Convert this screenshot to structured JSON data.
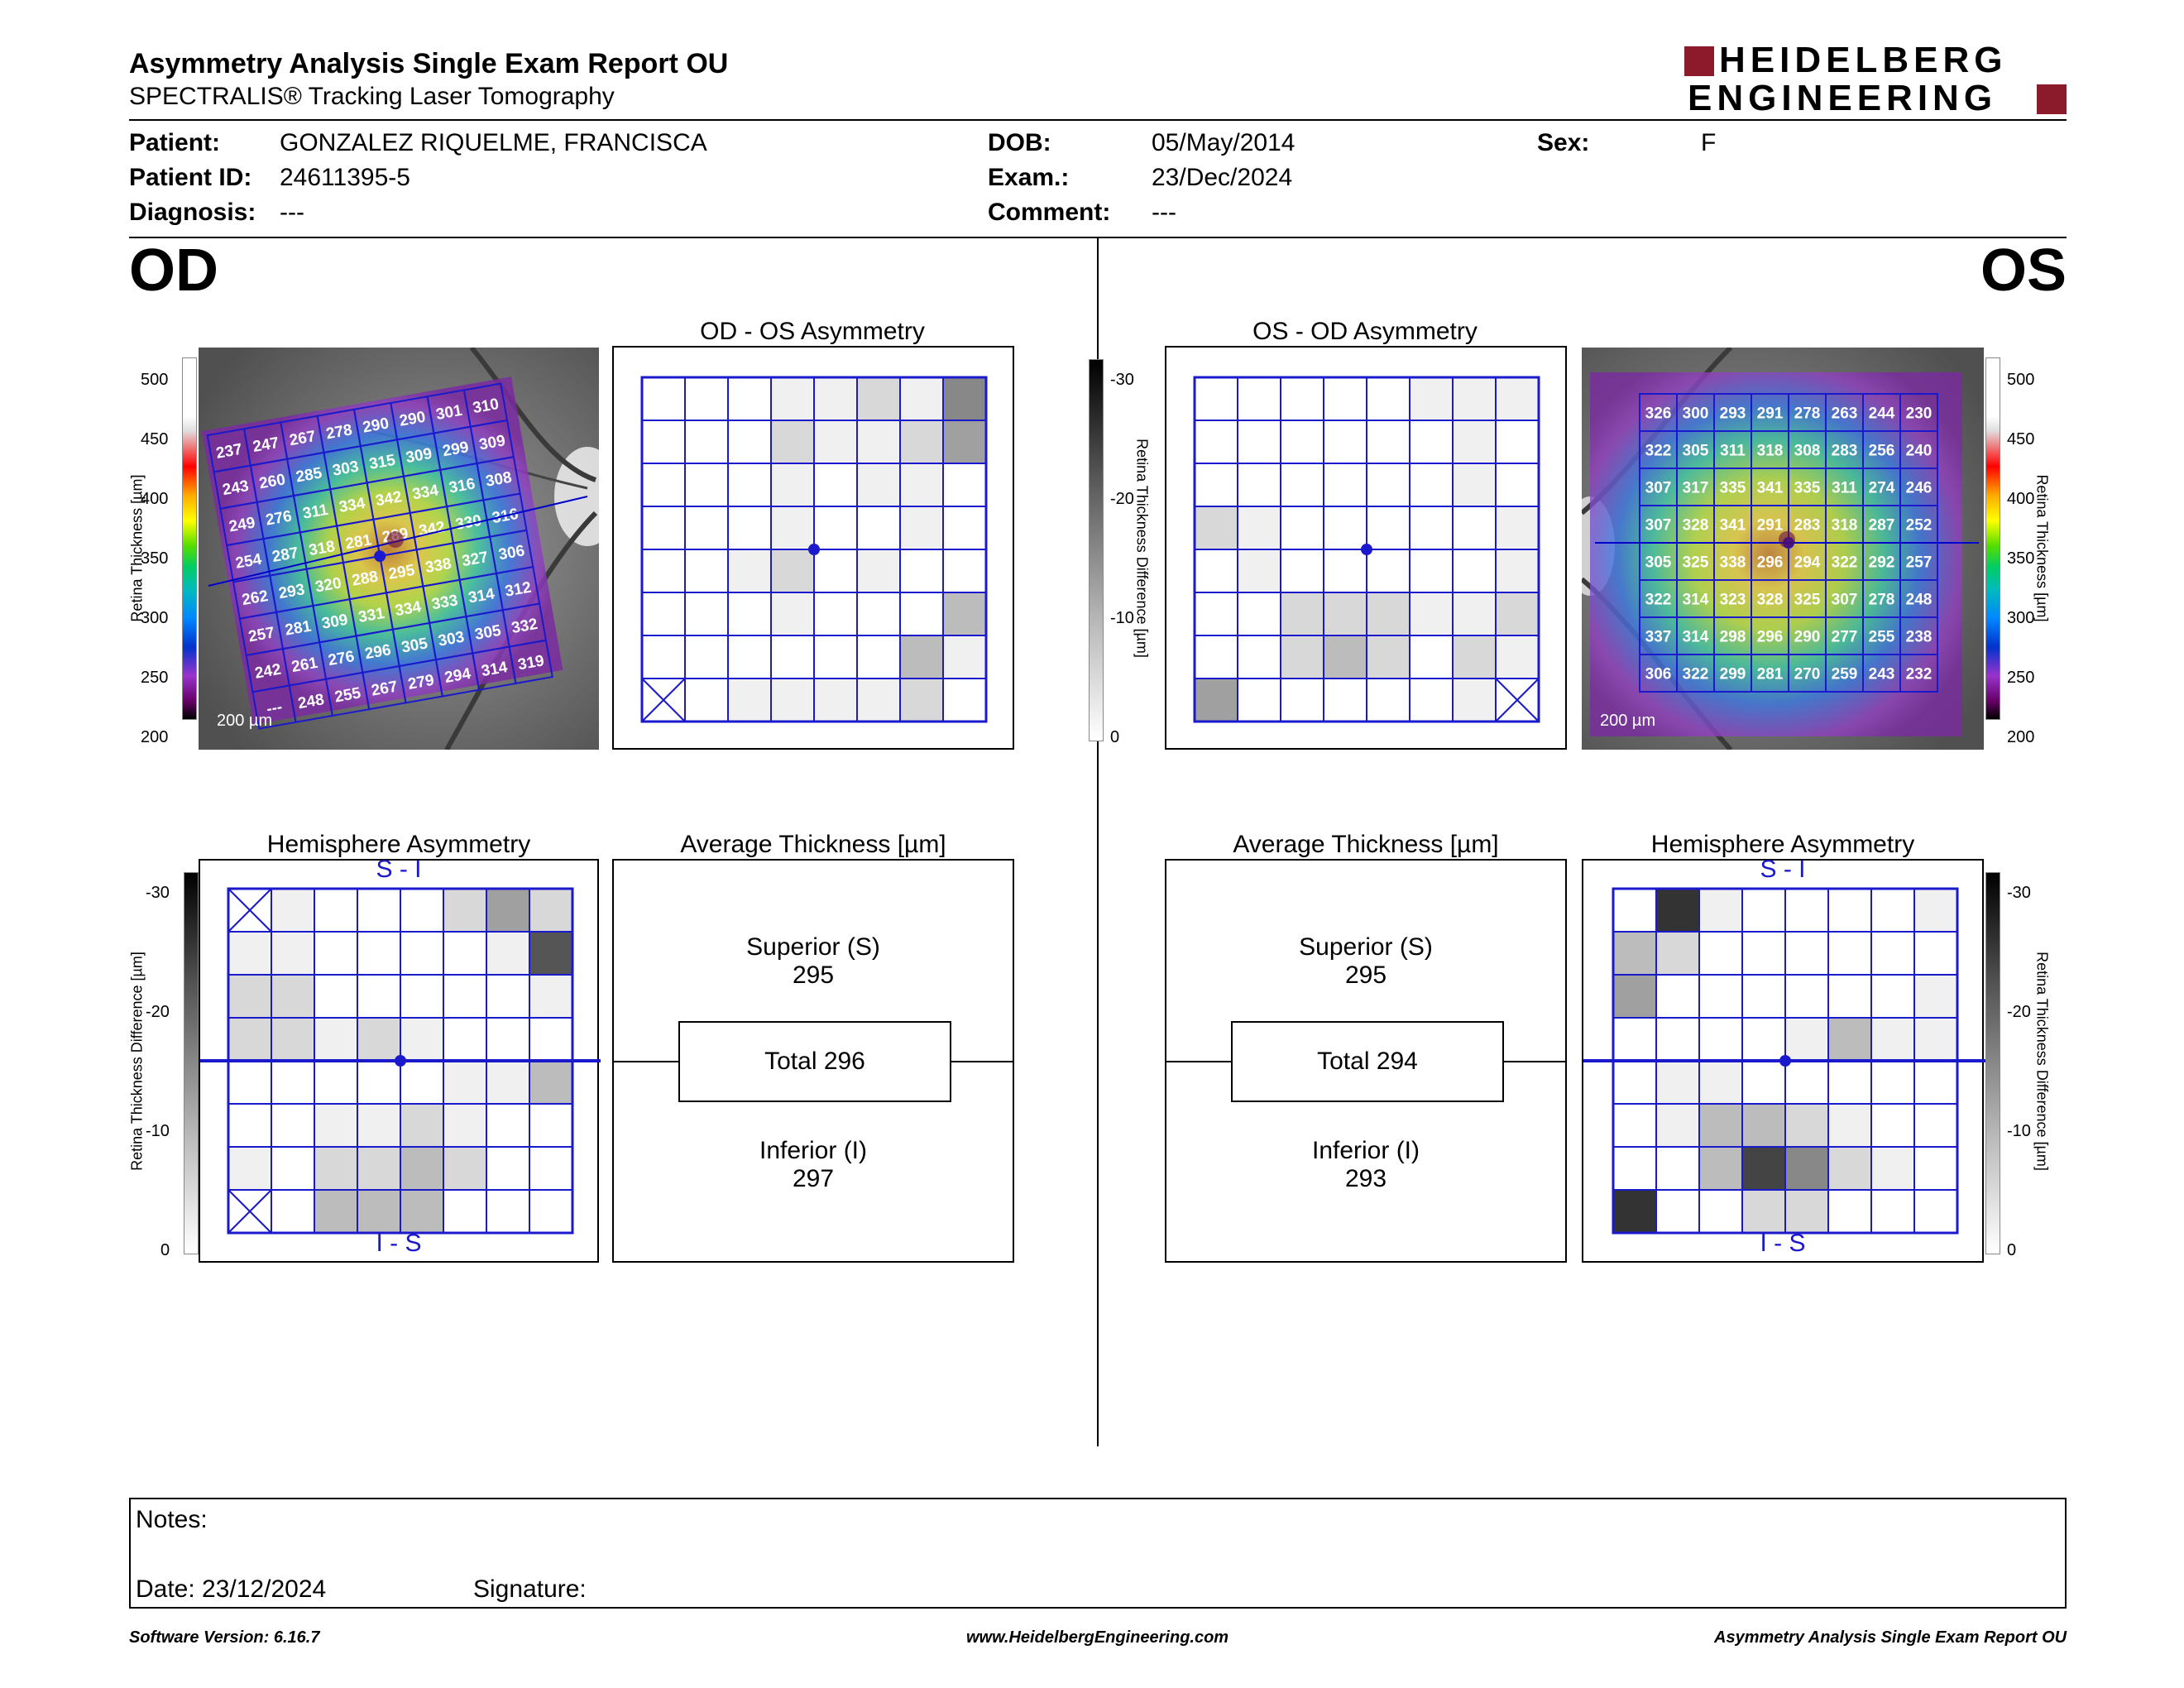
{
  "header": {
    "title": "Asymmetry Analysis Single Exam Report OU",
    "subtitle": "SPECTRALIS® Tracking Laser Tomography",
    "logo_line1": "HEIDELBERG",
    "logo_line2": "ENGINEERING",
    "logo_color": "#8b1a2b"
  },
  "patient": {
    "patient_label": "Patient:",
    "patient_value": "GONZALEZ RIQUELME, FRANCISCA",
    "id_label": "Patient ID:",
    "id_value": "24611395-5",
    "diagnosis_label": "Diagnosis:",
    "diagnosis_value": "---",
    "dob_label": "DOB:",
    "dob_value": "05/May/2014",
    "exam_label": "Exam.:",
    "exam_value": "23/Dec/2024",
    "comment_label": "Comment:",
    "comment_value": "---",
    "sex_label": "Sex:",
    "sex_value": "F"
  },
  "od": {
    "eye_label": "OD",
    "asym_title": "OD - OS Asymmetry",
    "hemi_title": "Hemisphere Asymmetry",
    "avg_title": "Average Thickness [µm]",
    "hemi_top": "S - I",
    "hemi_bottom": "I - S",
    "scale_label": "200 µm",
    "thickness_axis_label": "Retina Thickness [µm]",
    "diff_axis_label": "Retina Thickness Difference [µm]",
    "thickness_ticks": [
      "500",
      "450",
      "400",
      "350",
      "300",
      "250",
      "200"
    ],
    "diff_ticks": [
      "-30",
      "-20",
      "-10",
      "0"
    ],
    "superior_label": "Superior (S)",
    "superior_value": "295",
    "total_label": "Total 296",
    "inferior_label": "Inferior (I)",
    "inferior_value": "297",
    "thickness_grid": [
      [
        "237",
        "247",
        "267",
        "278",
        "290",
        "290",
        "301",
        "310"
      ],
      [
        "243",
        "260",
        "285",
        "303",
        "315",
        "309",
        "299",
        "309"
      ],
      [
        "249",
        "276",
        "311",
        "334",
        "342",
        "334",
        "316",
        "308"
      ],
      [
        "254",
        "287",
        "318",
        "281",
        "289",
        "342",
        "330",
        "316"
      ],
      [
        "262",
        "293",
        "320",
        "288",
        "295",
        "338",
        "327",
        "306"
      ],
      [
        "257",
        "281",
        "309",
        "331",
        "334",
        "333",
        "314",
        "312"
      ],
      [
        "242",
        "261",
        "276",
        "296",
        "305",
        "303",
        "305",
        "332"
      ],
      [
        "---",
        "248",
        "255",
        "267",
        "279",
        "294",
        "314",
        "319"
      ]
    ],
    "asym_grid": [
      [
        0,
        0,
        0,
        1,
        1,
        2,
        1,
        5
      ],
      [
        0,
        0,
        0,
        2,
        1,
        1,
        2,
        4
      ],
      [
        0,
        0,
        0,
        1,
        0,
        1,
        1,
        0
      ],
      [
        0,
        0,
        0,
        1,
        0,
        0,
        1,
        0
      ],
      [
        0,
        0,
        1,
        2,
        0,
        1,
        0,
        0
      ],
      [
        0,
        0,
        0,
        1,
        0,
        0,
        0,
        3
      ],
      [
        0,
        0,
        0,
        0,
        0,
        0,
        3,
        1
      ],
      [
        -1,
        0,
        1,
        1,
        1,
        1,
        2,
        0
      ]
    ],
    "hemi_grid": [
      [
        -1,
        1,
        0,
        0,
        0,
        2,
        4,
        2
      ],
      [
        1,
        1,
        0,
        0,
        0,
        0,
        1,
        6
      ],
      [
        2,
        2,
        0,
        0,
        0,
        0,
        0,
        1
      ],
      [
        2,
        2,
        1,
        2,
        1,
        0,
        0,
        0
      ],
      [
        0,
        0,
        0,
        0,
        0,
        1,
        1,
        3
      ],
      [
        0,
        0,
        1,
        1,
        2,
        1,
        0,
        0
      ],
      [
        1,
        0,
        2,
        2,
        3,
        2,
        0,
        0
      ],
      [
        -1,
        0,
        3,
        3,
        3,
        0,
        0,
        0
      ]
    ]
  },
  "os": {
    "eye_label": "OS",
    "asym_title": "OS - OD Asymmetry",
    "hemi_title": "Hemisphere Asymmetry",
    "avg_title": "Average Thickness [µm]",
    "hemi_top": "S - I",
    "hemi_bottom": "I - S",
    "scale_label": "200 µm",
    "thickness_axis_label": "Retina Thickness [µm]",
    "diff_axis_label": "Retina Thickness Difference [µm]",
    "thickness_ticks": [
      "500",
      "450",
      "400",
      "350",
      "300",
      "250",
      "200"
    ],
    "diff_ticks": [
      "-30",
      "-20",
      "-10",
      "0"
    ],
    "superior_label": "Superior (S)",
    "superior_value": "295",
    "total_label": "Total 294",
    "inferior_label": "Inferior (I)",
    "inferior_value": "293",
    "thickness_grid": [
      [
        "326",
        "300",
        "293",
        "291",
        "278",
        "263",
        "244",
        "230"
      ],
      [
        "322",
        "305",
        "311",
        "318",
        "308",
        "283",
        "256",
        "240"
      ],
      [
        "307",
        "317",
        "335",
        "341",
        "335",
        "311",
        "274",
        "246"
      ],
      [
        "307",
        "328",
        "341",
        "291",
        "283",
        "318",
        "287",
        "252"
      ],
      [
        "305",
        "325",
        "338",
        "296",
        "294",
        "322",
        "292",
        "257"
      ],
      [
        "322",
        "314",
        "323",
        "328",
        "325",
        "307",
        "278",
        "248"
      ],
      [
        "337",
        "314",
        "298",
        "296",
        "290",
        "277",
        "255",
        "238"
      ],
      [
        "306",
        "322",
        "299",
        "281",
        "270",
        "259",
        "243",
        "232"
      ]
    ],
    "asym_grid": [
      [
        0,
        0,
        0,
        0,
        0,
        1,
        1,
        1
      ],
      [
        0,
        0,
        0,
        0,
        0,
        0,
        1,
        0
      ],
      [
        0,
        0,
        0,
        0,
        0,
        0,
        1,
        0
      ],
      [
        2,
        1,
        0,
        0,
        0,
        0,
        0,
        1
      ],
      [
        0,
        1,
        0,
        0,
        0,
        0,
        0,
        1
      ],
      [
        0,
        0,
        2,
        2,
        2,
        1,
        1,
        2
      ],
      [
        0,
        0,
        2,
        3,
        2,
        0,
        2,
        1
      ],
      [
        4,
        0,
        0,
        0,
        0,
        0,
        1,
        -1
      ]
    ],
    "hemi_grid": [
      [
        0,
        8,
        1,
        0,
        0,
        0,
        0,
        1
      ],
      [
        3,
        2,
        0,
        0,
        0,
        0,
        0,
        0
      ],
      [
        4,
        0,
        0,
        0,
        0,
        0,
        0,
        1
      ],
      [
        0,
        0,
        0,
        0,
        1,
        3,
        1,
        1
      ],
      [
        0,
        1,
        1,
        0,
        0,
        0,
        0,
        0
      ],
      [
        0,
        1,
        3,
        3,
        2,
        1,
        0,
        0
      ],
      [
        0,
        0,
        3,
        7,
        5,
        2,
        1,
        0
      ],
      [
        8,
        0,
        0,
        2,
        2,
        0,
        0,
        0
      ]
    ]
  },
  "notes": {
    "notes_label": "Notes:",
    "date_label": "Date: 23/12/2024",
    "signature_label": "Signature:"
  },
  "footer": {
    "software": "Software Version: 6.16.7",
    "website": "www.HeidelbergEngineering.com",
    "report": "Asymmetry Analysis Single Exam Report OU"
  }
}
